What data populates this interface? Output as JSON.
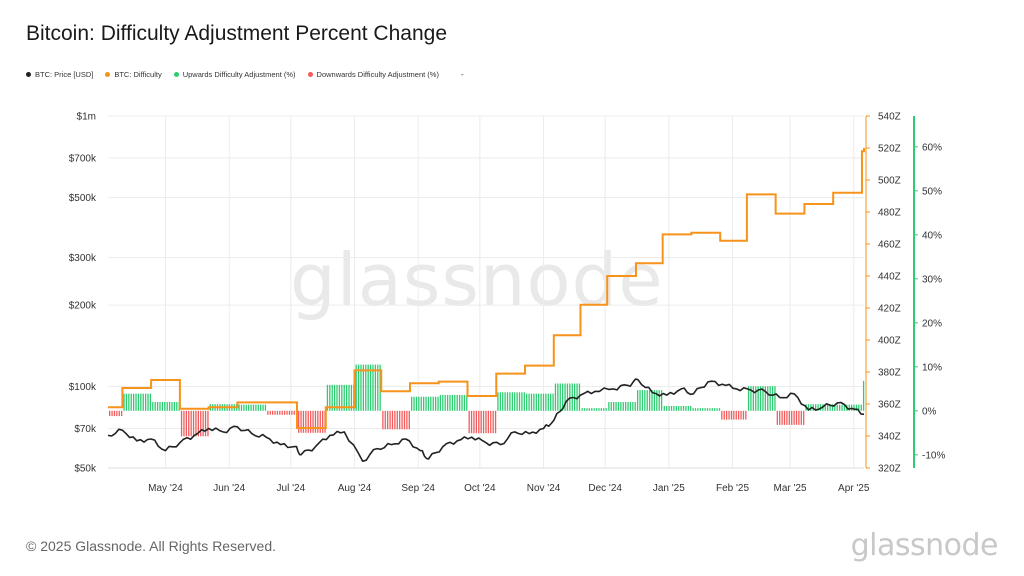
{
  "title": "Bitcoin: Difficulty Adjustment Percent Change",
  "watermark": "glassnode",
  "copyright": "© 2025 Glassnode. All Rights Reserved.",
  "brand": "glassnode",
  "legend": [
    {
      "label": "BTC: Price [USD]",
      "color": "#222222"
    },
    {
      "label": "BTC: Difficulty",
      "color": "#f7931a"
    },
    {
      "label": "Upwards Difficulty Adjustment (%)",
      "color": "#2ecc71"
    },
    {
      "label": "Downwards Difficulty Adjustment (%)",
      "color": "#f25c5c"
    }
  ],
  "legend_extra": "-",
  "colors": {
    "price": "#222222",
    "difficulty": "#f7931a",
    "up": "#2ecc71",
    "down": "#f25c5c"
  },
  "chart_data": {
    "type": "line",
    "x_range": [
      "2024-04-03",
      "2025-04-06"
    ],
    "x_ticks": [
      {
        "date": "2024-05-01",
        "label": "May '24"
      },
      {
        "date": "2024-06-01",
        "label": "Jun '24"
      },
      {
        "date": "2024-07-01",
        "label": "Jul '24"
      },
      {
        "date": "2024-08-01",
        "label": "Aug '24"
      },
      {
        "date": "2024-09-01",
        "label": "Sep '24"
      },
      {
        "date": "2024-10-01",
        "label": "Oct '24"
      },
      {
        "date": "2024-11-01",
        "label": "Nov '24"
      },
      {
        "date": "2024-12-01",
        "label": "Dec '24"
      },
      {
        "date": "2025-01-01",
        "label": "Jan '25"
      },
      {
        "date": "2025-02-01",
        "label": "Feb '25"
      },
      {
        "date": "2025-03-01",
        "label": "Mar '25"
      },
      {
        "date": "2025-04-01",
        "label": "Apr '25"
      }
    ],
    "left_axis": {
      "label": "",
      "scale": "log",
      "range": [
        50000,
        1000000
      ],
      "ticks": [
        {
          "value": 50000,
          "label": "$50k"
        },
        {
          "value": 70000,
          "label": "$70k"
        },
        {
          "value": 100000,
          "label": "$100k"
        },
        {
          "value": 200000,
          "label": "$200k"
        },
        {
          "value": 300000,
          "label": "$300k"
        },
        {
          "value": 500000,
          "label": "$500k"
        },
        {
          "value": 700000,
          "label": "$700k"
        },
        {
          "value": 1000000,
          "label": "$1m"
        }
      ]
    },
    "right_axis": {
      "label": "",
      "scale": "linear",
      "range": [
        320,
        540
      ],
      "ticks": [
        "320Z",
        "340Z",
        "360Z",
        "380Z",
        "400Z",
        "420Z",
        "440Z",
        "460Z",
        "480Z",
        "500Z",
        "520Z",
        "540Z"
      ]
    },
    "pct_axis": {
      "label": "",
      "scale": "linear",
      "range": [
        -13,
        67
      ],
      "ticks": [
        "-10%",
        "0%",
        "10%",
        "20%",
        "30%",
        "40%",
        "50%",
        "60%"
      ]
    },
    "series": [
      {
        "name": "BTC: Price [USD]",
        "axis": "left",
        "style": "line",
        "x": [
          "2024-04-03",
          "2024-04-10",
          "2024-04-17",
          "2024-04-24",
          "2024-05-01",
          "2024-05-08",
          "2024-05-15",
          "2024-05-22",
          "2024-05-29",
          "2024-06-05",
          "2024-06-12",
          "2024-06-19",
          "2024-06-26",
          "2024-07-03",
          "2024-07-06",
          "2024-07-13",
          "2024-07-20",
          "2024-07-27",
          "2024-08-05",
          "2024-08-12",
          "2024-08-19",
          "2024-08-26",
          "2024-09-02",
          "2024-09-06",
          "2024-09-13",
          "2024-09-20",
          "2024-09-27",
          "2024-10-04",
          "2024-10-11",
          "2024-10-18",
          "2024-10-25",
          "2024-11-01",
          "2024-11-06",
          "2024-11-12",
          "2024-11-19",
          "2024-11-26",
          "2024-12-05",
          "2024-12-12",
          "2024-12-17",
          "2024-12-24",
          "2024-12-31",
          "2025-01-07",
          "2025-01-13",
          "2025-01-20",
          "2025-01-27",
          "2025-02-03",
          "2025-02-10",
          "2025-02-17",
          "2025-02-24",
          "2025-03-03",
          "2025-03-10",
          "2025-03-17",
          "2025-03-24",
          "2025-03-31",
          "2025-04-06"
        ],
        "y": [
          66000,
          69000,
          63000,
          64000,
          58000,
          62000,
          66000,
          70000,
          68000,
          71000,
          67000,
          65000,
          61000,
          60000,
          56000,
          60000,
          66000,
          68000,
          53000,
          59000,
          61000,
          64000,
          58000,
          54000,
          60000,
          63000,
          65000,
          62000,
          61000,
          68000,
          67000,
          70000,
          75000,
          88000,
          93000,
          96000,
          98000,
          101000,
          106000,
          95000,
          93000,
          98000,
          94000,
          104000,
          102000,
          98000,
          97000,
          96000,
          91000,
          94000,
          82000,
          84000,
          87000,
          83000,
          79000
        ]
      },
      {
        "name": "BTC: Difficulty",
        "axis": "right",
        "style": "step",
        "x": [
          "2024-04-03",
          "2024-04-10",
          "2024-04-24",
          "2024-05-08",
          "2024-05-22",
          "2024-06-05",
          "2024-06-19",
          "2024-07-04",
          "2024-07-18",
          "2024-08-01",
          "2024-08-14",
          "2024-08-28",
          "2024-09-11",
          "2024-09-25",
          "2024-10-09",
          "2024-10-23",
          "2024-11-06",
          "2024-11-19",
          "2024-12-02",
          "2024-12-16",
          "2024-12-29",
          "2025-01-12",
          "2025-01-26",
          "2025-02-08",
          "2025-02-22",
          "2025-03-08",
          "2025-03-22",
          "2025-04-05",
          "2025-04-06"
        ],
        "y": [
          358,
          370,
          375,
          357,
          358,
          361,
          361,
          345,
          358,
          381,
          368,
          373,
          374,
          365,
          379,
          384,
          403,
          422,
          440,
          448,
          466,
          467,
          462,
          491,
          479,
          485,
          492,
          518,
          520
        ]
      },
      {
        "name": "Upwards Difficulty Adjustment (%)",
        "axis": "pct",
        "style": "bars",
        "x": [
          "2024-04-10",
          "2024-04-24",
          "2024-05-22",
          "2024-06-05",
          "2024-07-18",
          "2024-08-01",
          "2024-08-28",
          "2024-09-11",
          "2024-10-09",
          "2024-10-23",
          "2024-11-06",
          "2024-11-19",
          "2024-12-02",
          "2024-12-16",
          "2024-12-29",
          "2025-01-12",
          "2025-02-08",
          "2025-03-08",
          "2025-03-22",
          "2025-04-05"
        ],
        "y": [
          3.9,
          2.0,
          1.5,
          1.4,
          5.9,
          10.5,
          3.2,
          3.6,
          4.2,
          3.9,
          6.2,
          0.6,
          2.0,
          4.7,
          1.1,
          0.6,
          5.6,
          1.5,
          1.4,
          6.8
        ]
      },
      {
        "name": "Downwards Difficulty Adjustment (%)",
        "axis": "pct",
        "style": "bars",
        "x": [
          "2024-04-03",
          "2024-05-08",
          "2024-06-19",
          "2024-07-04",
          "2024-08-14",
          "2024-09-25",
          "2025-01-26",
          "2025-02-22"
        ],
        "y": [
          -1.2,
          -5.8,
          -0.9,
          -5.0,
          -4.2,
          -5.1,
          -2.0,
          -3.2
        ]
      }
    ]
  }
}
